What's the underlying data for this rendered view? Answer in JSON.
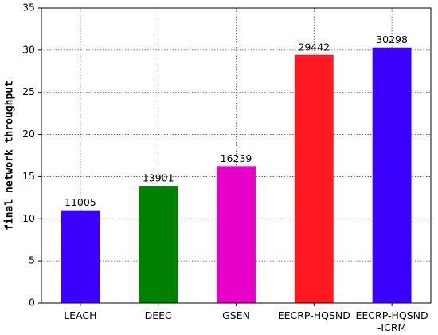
{
  "chart_data": {
    "type": "bar",
    "y_label": "final network throughput",
    "categories": [
      "LEACH",
      "DEEC",
      "GSEN",
      "EECRP-HQSND",
      "EECRP-HQSND\n-ICRM"
    ],
    "values": [
      11.005,
      13.901,
      16.239,
      29.442,
      30.298
    ],
    "value_labels": [
      "11005",
      "13901",
      "16239",
      "29442",
      "30298"
    ],
    "colors": [
      "#3a00ff",
      "#008000",
      "#e600c8",
      "#ff1a22",
      "#3a00ff"
    ],
    "ylim": [
      0,
      35
    ],
    "yticks": [
      0,
      5,
      10,
      15,
      20,
      25,
      30,
      35
    ],
    "grid": true
  }
}
